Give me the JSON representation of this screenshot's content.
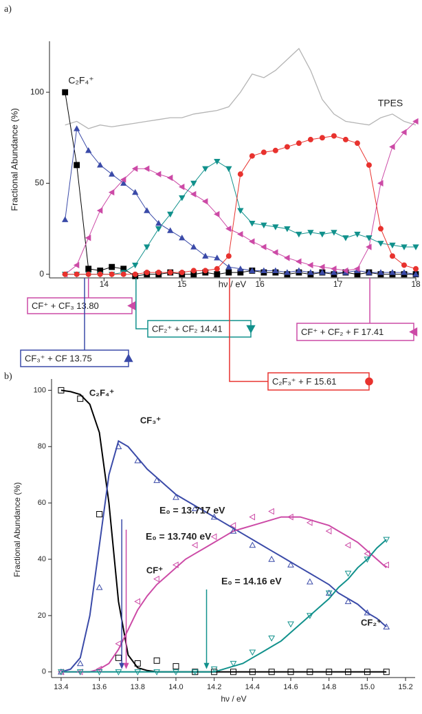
{
  "chart_data": [
    {
      "type": "line",
      "panel_label": "a)",
      "xlabel": "hν / eV",
      "ylabel": "Fractional Abundance  (%)",
      "xlim": [
        13.3,
        18
      ],
      "ylim": [
        -2,
        128
      ],
      "xticks": [
        14,
        15,
        16,
        17,
        18
      ],
      "yticks": [
        0,
        50,
        100
      ],
      "grid": false,
      "marker_fill": true,
      "x": [
        13.5,
        13.65,
        13.8,
        13.95,
        14.1,
        14.25,
        14.4,
        14.55,
        14.7,
        14.85,
        15.0,
        15.15,
        15.3,
        15.45,
        15.6,
        15.75,
        15.9,
        16.05,
        16.2,
        16.35,
        16.5,
        16.65,
        16.8,
        16.95,
        17.1,
        17.25,
        17.4,
        17.55,
        17.7,
        17.85,
        18.0
      ],
      "series": [
        {
          "name": "C₂F₄⁺",
          "color": "#000000",
          "marker": "square",
          "values": [
            100,
            60,
            3,
            2,
            4,
            3,
            -1,
            0,
            0,
            1,
            0,
            0,
            1,
            0,
            1,
            1,
            2,
            1,
            1,
            0,
            1,
            0,
            1,
            0,
            1,
            0,
            1,
            0,
            0,
            0,
            0
          ]
        },
        {
          "color": "#3a4aa8",
          "marker": "triangle-up",
          "values": [
            30,
            80,
            68,
            60,
            55,
            50,
            45,
            35,
            28,
            24,
            20,
            15,
            10,
            9,
            4,
            3,
            2,
            2,
            2,
            1,
            2,
            1,
            1,
            1,
            1,
            2,
            1,
            1,
            1,
            1,
            0
          ]
        },
        {
          "color": "#cc4aa6",
          "marker": "triangle-left",
          "values": [
            0,
            5,
            20,
            35,
            45,
            52,
            58,
            58,
            55,
            53,
            48,
            44,
            40,
            33,
            25,
            22,
            18,
            15,
            12,
            9,
            7,
            5,
            4,
            3,
            2,
            3,
            15,
            50,
            70,
            78,
            84
          ]
        },
        {
          "color": "#11918c",
          "marker": "triangle-down",
          "values": [
            0,
            0,
            0,
            0,
            0,
            1,
            5,
            15,
            25,
            33,
            42,
            50,
            58,
            62,
            58,
            35,
            28,
            27,
            26,
            25,
            22,
            23,
            22,
            23,
            20,
            22,
            20,
            17,
            16,
            15,
            15
          ]
        },
        {
          "color": "#e8322e",
          "marker": "circle",
          "values": [
            0,
            0,
            0,
            0,
            0,
            0,
            0,
            1,
            1,
            1,
            1,
            2,
            2,
            3,
            10,
            55,
            65,
            67,
            68,
            70,
            72,
            74,
            75,
            76,
            74,
            72,
            60,
            25,
            10,
            5,
            3
          ]
        },
        {
          "name": "TPES",
          "color": "#b4b4b4",
          "values": [
            82,
            84,
            80,
            82,
            81,
            82,
            83,
            84,
            85,
            86,
            86,
            88,
            89,
            90,
            92,
            100,
            110,
            108,
            112,
            118,
            124,
            112,
            96,
            88,
            84,
            83,
            82,
            86,
            88,
            84,
            82
          ]
        }
      ],
      "annotations": [
        {
          "value": 13.8,
          "label": "CF⁺ + CF₃  13.80",
          "color": "#cc4aa6",
          "marker": "triangle-left"
        },
        {
          "value": 13.75,
          "label": "CF₃⁺ + CF  13.75",
          "color": "#3a4aa8",
          "marker": "triangle-up"
        },
        {
          "value": 14.41,
          "label": "CF₂⁺ + CF₂  14.41",
          "color": "#11918c",
          "marker": "triangle-down"
        },
        {
          "value": 15.61,
          "label": "C₂F₃⁺ + F  15.61",
          "color": "#e8322e",
          "marker": "circle"
        },
        {
          "value": 17.41,
          "label": "CF⁺ + CF₂ + F  17.41",
          "color": "#cc4aa6",
          "marker": "triangle-left"
        }
      ]
    },
    {
      "type": "scatter",
      "panel_label": "b)",
      "xlabel": "hν / eV",
      "ylabel": "Fractional Abundance  (%)",
      "xlim": [
        13.35,
        15.25
      ],
      "ylim": [
        -2,
        104
      ],
      "xticks": [
        13.4,
        13.6,
        13.8,
        {
          "value": 14,
          "label": "14.0"
        },
        14.2,
        14.4,
        14.6,
        14.8,
        {
          "value": 15,
          "label": "15.0"
        },
        15.2
      ],
      "yticks": [
        0,
        20,
        40,
        60,
        80,
        100
      ],
      "grid": false,
      "marker_fill": false,
      "x": [
        13.4,
        13.5,
        13.6,
        13.7,
        13.8,
        13.9,
        14.0,
        14.1,
        14.2,
        14.3,
        14.4,
        14.5,
        14.6,
        14.7,
        14.8,
        14.9,
        15.0,
        15.1
      ],
      "fit_x": [
        13.4,
        13.45,
        13.5,
        13.55,
        13.6,
        13.65,
        13.7,
        13.75,
        13.8,
        13.85,
        13.9,
        13.95,
        14.0,
        14.05,
        14.1,
        14.15,
        14.2,
        14.25,
        14.3,
        14.35,
        14.4,
        14.45,
        14.5,
        14.55,
        14.6,
        14.65,
        14.7,
        14.75,
        14.8,
        14.85,
        14.9,
        14.95,
        15.0,
        15.05,
        15.1
      ],
      "series": [
        {
          "name": "C₂F₄⁺",
          "color": "#000000",
          "marker": "square",
          "values": [
            100,
            97,
            56,
            5,
            3,
            4,
            2,
            0,
            0,
            0,
            0,
            0,
            0,
            0,
            0,
            0,
            0,
            0
          ],
          "fit": [
            100,
            99.5,
            98.5,
            95,
            85,
            60,
            25,
            6,
            1.5,
            0.5,
            0,
            0,
            0,
            0,
            0,
            0,
            0,
            0,
            0,
            0,
            0,
            0,
            0,
            0,
            0,
            0,
            0,
            0,
            0,
            0,
            0,
            0,
            0,
            0,
            0
          ]
        },
        {
          "name": "CF₃⁺",
          "color": "#3a4aa8",
          "marker": "triangle-up",
          "values": [
            0,
            3,
            30,
            80,
            75,
            68,
            62,
            58,
            55,
            50,
            45,
            40,
            38,
            32,
            28,
            25,
            21,
            16
          ],
          "fit": [
            0,
            1,
            5,
            20,
            45,
            70,
            82,
            80,
            76,
            72,
            69,
            66,
            63,
            61,
            59,
            57,
            55,
            53,
            51,
            49,
            47,
            45,
            43,
            41,
            39,
            37,
            35,
            33,
            31,
            28,
            26,
            24,
            21,
            19,
            16
          ]
        },
        {
          "name": "CF⁺",
          "color": "#cc4aa6",
          "marker": "triangle-left",
          "values": [
            0,
            0,
            1,
            10,
            25,
            33,
            38,
            45,
            48,
            52,
            55,
            57,
            55,
            53,
            50,
            45,
            42,
            38
          ],
          "fit": [
            0,
            0,
            0,
            0,
            1,
            3,
            8,
            15,
            22,
            27,
            31,
            34,
            37,
            40,
            42,
            44,
            46,
            48,
            50,
            51,
            52,
            53,
            54,
            55,
            55,
            55,
            54,
            53,
            52,
            50,
            48,
            46,
            43,
            40,
            37
          ]
        },
        {
          "name": "CF₂⁺",
          "color": "#11918c",
          "marker": "triangle-down",
          "values": [
            0,
            0,
            0,
            0,
            0,
            0,
            0,
            0,
            1,
            3,
            7,
            12,
            17,
            20,
            28,
            35,
            40,
            47
          ],
          "fit": [
            0,
            0,
            0,
            0,
            0,
            0,
            0,
            0,
            0,
            0,
            0,
            0,
            0,
            0,
            0,
            0,
            0,
            1,
            2,
            3,
            5,
            7,
            9,
            11,
            14,
            17,
            20,
            23,
            26,
            30,
            33,
            37,
            40,
            44,
            47
          ]
        }
      ],
      "annotations": [
        {
          "value": 13.717,
          "label": "E₀ = 13.717 eV",
          "color": "#3a4aa8"
        },
        {
          "value": 13.74,
          "label": "E₀ = 13.740 eV",
          "color": "#cc4aa6"
        },
        {
          "value": 14.16,
          "label": "E₀ = 14.16 eV",
          "color": "#11918c"
        }
      ]
    }
  ]
}
